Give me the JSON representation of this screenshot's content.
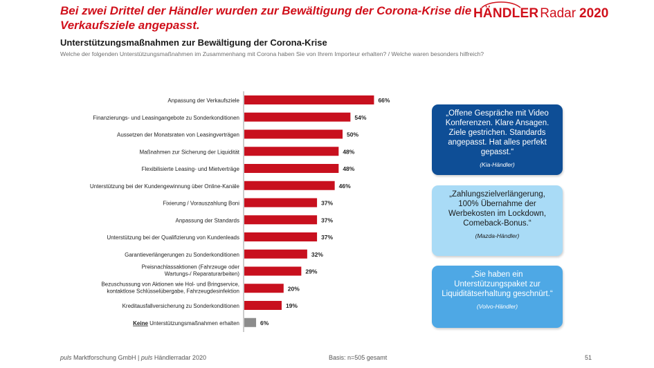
{
  "header": {
    "headline": "Bei zwei Drittel der Händler wurden zur Bewältigung der Corona-Krise die Verkaufsziele angepasst.",
    "logo": {
      "part1": "HÄNDLER",
      "part2": "Radar",
      "part3": "2020",
      "color": "#d0101b"
    }
  },
  "subtitle": "Unterstützungsmaßnahmen zur Bewältigung der Corona-Krise",
  "question": "Welche der folgenden Unterstützungsmaßnahmen im Zusammenhang mit Corona haben Sie von Ihrem Importeur erhalten? / Welche waren besonders hilfreich?",
  "chart_data": {
    "type": "bar",
    "orientation": "horizontal",
    "categories": [
      [
        "Anpassung der Verkaufsziele"
      ],
      [
        "Finanzierungs- und Leasingangebote zu Sonderkonditionen"
      ],
      [
        "Aussetzen der Monatsraten von Leasingverträgen"
      ],
      [
        "Maßnahmen zur Sicherung der Liquidität"
      ],
      [
        "Flexibilisierte Leasing- und Mietverträge"
      ],
      [
        "Unterstützung bei der Kundengewinnung über Online-Kanäle"
      ],
      [
        "Fixierung / Vorauszahlung Boni"
      ],
      [
        "Anpassung der Standards"
      ],
      [
        "Unterstützung bei der Qualifizierung von Kundenleads"
      ],
      [
        "Garantieverlängerungen zu Sonderkonditionen"
      ],
      [
        "Preisnachlassaktionen (Fahrzeuge oder",
        "Wartungs-/ Reparaturarbeiten)"
      ],
      [
        "Bezuschussung von Aktionen wie Hol- und Bringservice,",
        "kontaktlose Schlüsselübergabe, Fahrzeugdesinfektion"
      ],
      [
        "Kreditausfallversicherung zu Sonderkonditionen"
      ],
      [
        "Keine",
        " Unterstützungsmaßnahmen erhalten"
      ]
    ],
    "values": [
      66,
      54,
      50,
      48,
      48,
      46,
      37,
      37,
      37,
      32,
      29,
      20,
      19,
      6
    ],
    "value_labels": [
      "66%",
      "54%",
      "50%",
      "48%",
      "48%",
      "46%",
      "37%",
      "37%",
      "37%",
      "32%",
      "29%",
      "20%",
      "19%",
      "6%"
    ],
    "colors": [
      "#c8101e",
      "#c8101e",
      "#c8101e",
      "#c8101e",
      "#c8101e",
      "#c8101e",
      "#c8101e",
      "#c8101e",
      "#c8101e",
      "#c8101e",
      "#c8101e",
      "#c8101e",
      "#c8101e",
      "#8c8c8c"
    ],
    "xlim": [
      0,
      100
    ],
    "unit": "%"
  },
  "quotes": [
    {
      "text": "„Offene Gespräche mit Video Konferenzen. Klare Ansagen. Ziele gestrichen. Standards angepasst. Hat alles perfekt gepasst.“",
      "source": "(Kia-Händler)",
      "color": "#0e4e96"
    },
    {
      "text": "„Zahlungszielverlängerung, 100% Übernahme der Werbekosten im Lockdown, Comeback-Bonus.“",
      "source": "(Mazda-Händler)",
      "color": "#a9dbf6"
    },
    {
      "text": "„Sie haben ein Unterstützungspaket zur Liquiditätserhaltung geschnürt.“",
      "source": "(Volvo-Händler)",
      "color": "#4ea8e5"
    }
  ],
  "footer": {
    "brand1": "puls",
    "company": " Marktforschung GmbH | ",
    "brand2": "puls",
    "product": " Händlerradar 2020",
    "basis": "Basis: n=505 gesamt",
    "page": "51"
  }
}
